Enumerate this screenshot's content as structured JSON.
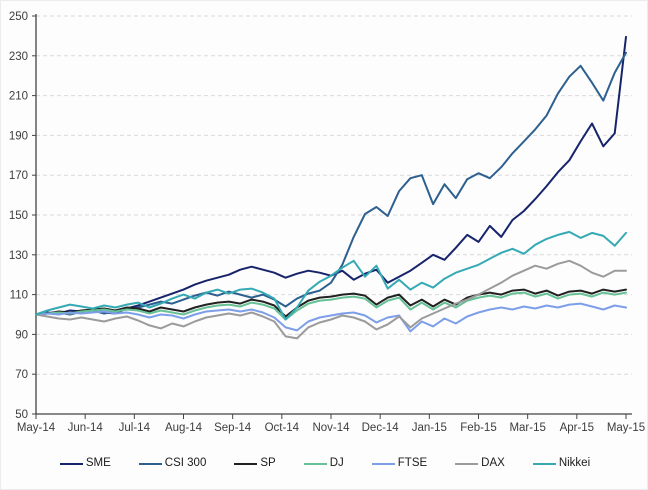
{
  "chart_data": {
    "type": "line",
    "title": "",
    "xlabel": "",
    "ylabel": "",
    "ylim": [
      50,
      250
    ],
    "yticks": [
      50,
      70,
      90,
      110,
      130,
      150,
      170,
      190,
      210,
      230,
      250
    ],
    "grid": "horizontal-dashed",
    "legend_position": "bottom",
    "axis_color": "#444444",
    "grid_color": "#d9d9d9",
    "label_color": "#3d3d3d",
    "categories": [
      "May-14",
      "Jun-14",
      "Jul-14",
      "Aug-14",
      "Sep-14",
      "Oct-14",
      "Nov-14",
      "Dec-14",
      "Jan-15",
      "Feb-15",
      "Mar-15",
      "Apr-15",
      "May-15"
    ],
    "series": [
      {
        "name": "SME",
        "color": "#17246b",
        "values": [
          100,
          101,
          100.5,
          102,
          101.5,
          102.5,
          101,
          100.5,
          103,
          104.5,
          106.5,
          108.5,
          110.5,
          112.5,
          115,
          117,
          118.5,
          120,
          122.5,
          124,
          122.5,
          121,
          118.5,
          120.5,
          122,
          121,
          119.5,
          122,
          117.5,
          120.5,
          122.5,
          116,
          119,
          122,
          126,
          130,
          127.5,
          133.5,
          140,
          136.5,
          144.5,
          139,
          147.5,
          152,
          158,
          164.5,
          171.5,
          177.5,
          187,
          196,
          184.5,
          191,
          239.5
        ]
      },
      {
        "name": "CSI 300",
        "color": "#2d608f",
        "values": [
          100,
          100.5,
          101,
          100,
          101.5,
          102,
          100.5,
          101.5,
          102.5,
          103.5,
          105,
          106.5,
          105.5,
          107.5,
          109.5,
          111,
          109.5,
          111.5,
          110,
          108.5,
          110,
          107.5,
          104,
          108,
          110.5,
          112,
          116,
          125,
          139,
          150.5,
          154,
          149.5,
          162,
          168.5,
          170,
          155.5,
          165.5,
          158.5,
          168,
          171,
          168.5,
          174,
          181,
          187,
          193,
          200,
          211,
          219.5,
          225,
          216.5,
          207.5,
          221.5,
          231.5
        ]
      },
      {
        "name": "SP",
        "color": "#212121",
        "values": [
          100,
          100.5,
          101.5,
          101,
          102,
          102.5,
          103,
          102,
          103.5,
          103,
          101.5,
          103.5,
          102.5,
          101.5,
          103.5,
          105,
          106,
          106.5,
          105.5,
          107.5,
          106.5,
          104.5,
          99,
          103.5,
          107,
          108.5,
          109,
          110,
          110.5,
          109.5,
          105,
          108.5,
          110,
          104.5,
          107.5,
          104,
          107.5,
          105,
          108.5,
          110,
          111,
          110,
          112,
          112.5,
          110.5,
          112,
          109.5,
          111.5,
          112,
          110.5,
          112.5,
          111.5,
          112.5
        ]
      },
      {
        "name": "DJ",
        "color": "#66c196",
        "values": [
          100,
          100.5,
          101,
          100.5,
          101.5,
          102,
          102.5,
          101.5,
          102.5,
          102,
          100.5,
          102,
          101,
          100,
          102,
          103.5,
          104.5,
          105,
          104,
          106,
          105,
          103,
          97.5,
          102,
          105.5,
          107,
          107.5,
          108.5,
          109,
          108,
          103.5,
          107,
          108.5,
          102.5,
          106,
          102.5,
          106,
          103.5,
          107,
          108.5,
          109.5,
          108.5,
          110.5,
          111,
          109,
          110.5,
          108,
          110,
          110.5,
          109,
          111,
          110,
          111
        ]
      },
      {
        "name": "FTSE",
        "color": "#7d9ee8",
        "values": [
          100,
          100.5,
          100,
          101,
          100.5,
          101,
          101.5,
          100.5,
          101,
          100,
          98.5,
          100,
          99.5,
          98,
          100,
          101.5,
          102,
          102.5,
          101.5,
          102.5,
          101,
          98.5,
          93.5,
          92,
          96.5,
          98.5,
          99.5,
          100.5,
          101,
          99.5,
          96,
          98.5,
          99.5,
          91.5,
          96.5,
          94,
          98,
          95.5,
          99,
          101,
          102.5,
          103.5,
          102.5,
          104,
          103,
          104.5,
          103.5,
          105,
          105.5,
          104,
          102.5,
          104.5,
          103.5
        ]
      },
      {
        "name": "DAX",
        "color": "#9b9b9b",
        "values": [
          100,
          99,
          98,
          97.5,
          98.5,
          97.5,
          96.5,
          98,
          99,
          97,
          94.5,
          93,
          95.5,
          94,
          96.5,
          98.5,
          99.5,
          100.5,
          99.5,
          101,
          99,
          96.5,
          89,
          88,
          93.5,
          96,
          97.5,
          99.5,
          98.5,
          96.5,
          92.5,
          95,
          99,
          93.5,
          98,
          100.5,
          103,
          105.5,
          107.5,
          110,
          113,
          116,
          119.5,
          122,
          124.5,
          123,
          125.5,
          127,
          124.5,
          121,
          119,
          122,
          122
        ]
      },
      {
        "name": "Nikkei",
        "color": "#35aab4",
        "values": [
          100,
          102,
          103.5,
          105,
          104,
          103,
          104.5,
          103.5,
          105,
          106,
          103.5,
          105.5,
          108,
          110,
          108,
          111,
          112.5,
          110.5,
          112.5,
          113,
          111,
          108,
          97.5,
          103.5,
          112,
          116.5,
          119.5,
          123.5,
          127,
          119,
          124.5,
          113,
          117.5,
          112.5,
          116,
          113.5,
          118,
          121,
          123,
          125,
          128,
          131,
          133,
          130.5,
          135,
          138,
          140,
          141.5,
          138.5,
          141,
          139.5,
          134.5,
          141
        ]
      }
    ]
  }
}
